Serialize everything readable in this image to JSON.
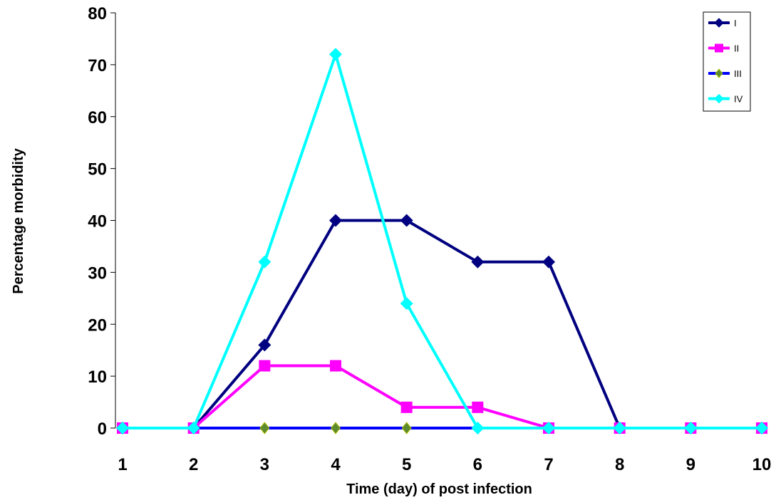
{
  "chart_data": {
    "type": "line",
    "title": "",
    "xlabel": "Time (day) of post infection",
    "ylabel": "Percentage morbidity",
    "x": [
      1,
      2,
      3,
      4,
      5,
      6,
      7,
      8,
      9,
      10
    ],
    "xlim": [
      1,
      10
    ],
    "ylim": [
      0,
      80
    ],
    "yticks": [
      0,
      10,
      20,
      30,
      40,
      50,
      60,
      70,
      80
    ],
    "grid": false,
    "legend_position": "top-right",
    "series": [
      {
        "name": "I",
        "color": "#000080",
        "marker": "diamond",
        "values": [
          0,
          0,
          16,
          40,
          40,
          32,
          32,
          0,
          0,
          0
        ]
      },
      {
        "name": "II",
        "color": "#FF00FF",
        "marker": "square",
        "values": [
          0,
          0,
          12,
          12,
          4,
          4,
          0,
          0,
          0,
          0
        ]
      },
      {
        "name": "III",
        "color": "#0000FF",
        "marker": "diamond-olive",
        "values": [
          0,
          0,
          0,
          0,
          0,
          0,
          null,
          null,
          null,
          null
        ]
      },
      {
        "name": "IV",
        "color": "#00FFFF",
        "marker": "diamond",
        "values": [
          0,
          0,
          32,
          72,
          24,
          0,
          0,
          0,
          0,
          0
        ]
      }
    ]
  }
}
